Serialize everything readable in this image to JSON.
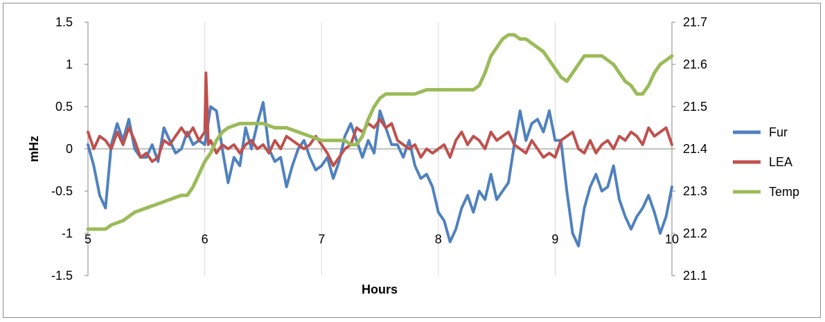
{
  "chart_data": {
    "type": "line",
    "title": "",
    "xlabel": "Hours",
    "ylabel": "mHz",
    "y2label": "",
    "xlim": [
      5,
      10
    ],
    "ylim": [
      -1.5,
      1.5
    ],
    "y2lim": [
      21.1,
      21.7
    ],
    "xticks": [
      "5",
      "6",
      "7",
      "8",
      "9",
      "10"
    ],
    "yticks": [
      "1.5",
      "1",
      "0.5",
      "0",
      "-0.5",
      "-1",
      "-1.5"
    ],
    "y2ticks": [
      "21.7",
      "21.6",
      "21.5",
      "21.4",
      "21.3",
      "21.2",
      "21.1"
    ],
    "grid": "vertical",
    "legend": "right",
    "series": [
      {
        "name": "Fur",
        "color": "#4f81bd",
        "axis": "left",
        "x": [
          5.0,
          5.05,
          5.1,
          5.15,
          5.2,
          5.25,
          5.3,
          5.35,
          5.4,
          5.45,
          5.5,
          5.55,
          5.6,
          5.65,
          5.7,
          5.75,
          5.8,
          5.85,
          5.9,
          5.95,
          6.0,
          6.05,
          6.1,
          6.15,
          6.2,
          6.25,
          6.3,
          6.35,
          6.4,
          6.45,
          6.5,
          6.55,
          6.6,
          6.65,
          6.7,
          6.75,
          6.8,
          6.85,
          6.9,
          6.95,
          7.0,
          7.05,
          7.1,
          7.15,
          7.2,
          7.25,
          7.3,
          7.35,
          7.4,
          7.45,
          7.5,
          7.55,
          7.6,
          7.65,
          7.7,
          7.75,
          7.8,
          7.85,
          7.9,
          7.95,
          8.0,
          8.05,
          8.1,
          8.15,
          8.2,
          8.25,
          8.3,
          8.35,
          8.4,
          8.45,
          8.5,
          8.55,
          8.6,
          8.65,
          8.7,
          8.75,
          8.8,
          8.85,
          8.9,
          8.95,
          9.0,
          9.05,
          9.1,
          9.15,
          9.2,
          9.25,
          9.3,
          9.35,
          9.4,
          9.45,
          9.5,
          9.55,
          9.6,
          9.65,
          9.7,
          9.75,
          9.8,
          9.85,
          9.9,
          9.95,
          10.0
        ],
        "y": [
          0.05,
          -0.2,
          -0.55,
          -0.7,
          0.05,
          0.3,
          0.1,
          0.35,
          0.0,
          -0.1,
          -0.1,
          0.05,
          -0.15,
          0.25,
          0.1,
          -0.05,
          0.0,
          0.2,
          0.05,
          0.1,
          0.05,
          0.5,
          0.45,
          0.0,
          -0.4,
          -0.1,
          -0.2,
          0.25,
          0.0,
          0.3,
          0.55,
          0.0,
          -0.15,
          -0.1,
          -0.45,
          -0.2,
          0.0,
          0.1,
          -0.1,
          -0.25,
          -0.2,
          -0.1,
          -0.35,
          -0.15,
          0.15,
          0.3,
          0.1,
          -0.1,
          0.1,
          -0.05,
          0.45,
          0.25,
          0.05,
          0.05,
          -0.1,
          0.1,
          -0.2,
          -0.35,
          -0.3,
          -0.45,
          -0.75,
          -0.85,
          -1.1,
          -0.95,
          -0.7,
          -0.55,
          -0.75,
          -0.5,
          -0.6,
          -0.3,
          -0.6,
          -0.5,
          -0.4,
          0.05,
          0.45,
          0.1,
          0.3,
          0.35,
          0.2,
          0.45,
          0.1,
          0.1,
          -0.5,
          -1.0,
          -1.15,
          -0.7,
          -0.45,
          -0.3,
          -0.5,
          -0.45,
          -0.2,
          -0.6,
          -0.8,
          -0.95,
          -0.8,
          -0.7,
          -0.55,
          -0.75,
          -1.0,
          -0.8,
          -0.45
        ]
      },
      {
        "name": "LEA",
        "color": "#c0504d",
        "axis": "left",
        "x": [
          5.0,
          5.05,
          5.1,
          5.15,
          5.2,
          5.25,
          5.3,
          5.35,
          5.4,
          5.45,
          5.5,
          5.55,
          5.6,
          5.65,
          5.7,
          5.75,
          5.8,
          5.85,
          5.9,
          5.95,
          6.0,
          6.01,
          6.02,
          6.03,
          6.05,
          6.1,
          6.15,
          6.2,
          6.25,
          6.3,
          6.35,
          6.4,
          6.45,
          6.5,
          6.55,
          6.6,
          6.65,
          6.7,
          6.75,
          6.8,
          6.85,
          6.9,
          6.95,
          7.0,
          7.05,
          7.1,
          7.15,
          7.2,
          7.25,
          7.3,
          7.35,
          7.4,
          7.45,
          7.5,
          7.55,
          7.6,
          7.65,
          7.7,
          7.75,
          7.8,
          7.85,
          7.9,
          7.95,
          8.0,
          8.05,
          8.1,
          8.15,
          8.2,
          8.25,
          8.3,
          8.35,
          8.4,
          8.45,
          8.5,
          8.55,
          8.6,
          8.65,
          8.7,
          8.75,
          8.8,
          8.85,
          8.9,
          8.95,
          9.0,
          9.05,
          9.1,
          9.15,
          9.2,
          9.25,
          9.3,
          9.35,
          9.4,
          9.45,
          9.5,
          9.55,
          9.6,
          9.65,
          9.7,
          9.75,
          9.8,
          9.85,
          9.9,
          9.95,
          10.0
        ],
        "y": [
          0.2,
          0.0,
          0.15,
          0.1,
          0.0,
          0.2,
          0.05,
          0.25,
          0.1,
          -0.1,
          -0.05,
          -0.15,
          -0.1,
          0.1,
          0.05,
          0.15,
          0.25,
          0.15,
          0.25,
          0.1,
          0.2,
          0.9,
          0.5,
          0.05,
          0.1,
          -0.05,
          0.05,
          0.0,
          0.05,
          -0.05,
          0.05,
          0.1,
          0.0,
          0.05,
          -0.05,
          0.1,
          0.0,
          0.15,
          0.1,
          0.05,
          0.0,
          0.05,
          0.15,
          0.05,
          -0.05,
          -0.2,
          -0.1,
          0.0,
          0.05,
          0.25,
          0.2,
          0.3,
          0.25,
          0.35,
          0.25,
          0.3,
          0.1,
          0.05,
          0.0,
          0.05,
          -0.1,
          0.0,
          -0.05,
          0.0,
          0.05,
          -0.1,
          0.1,
          0.2,
          0.05,
          0.15,
          0.1,
          0.0,
          0.2,
          0.1,
          0.15,
          0.2,
          0.05,
          0.0,
          -0.05,
          0.1,
          0.0,
          -0.1,
          -0.05,
          -0.1,
          0.1,
          0.15,
          0.2,
          0.0,
          -0.05,
          0.1,
          -0.05,
          0.05,
          0.1,
          0.0,
          0.15,
          0.1,
          0.2,
          0.15,
          0.05,
          0.25,
          0.15,
          0.2,
          0.25,
          0.05
        ]
      },
      {
        "name": "Temp",
        "color": "#9bbb59",
        "axis": "right",
        "x": [
          5.0,
          5.1,
          5.15,
          5.2,
          5.3,
          5.4,
          5.5,
          5.6,
          5.7,
          5.8,
          5.85,
          5.9,
          5.95,
          6.0,
          6.05,
          6.1,
          6.15,
          6.2,
          6.3,
          6.4,
          6.5,
          6.6,
          6.7,
          6.8,
          6.9,
          7.0,
          7.1,
          7.2,
          7.25,
          7.3,
          7.35,
          7.4,
          7.45,
          7.5,
          7.55,
          7.6,
          7.7,
          7.8,
          7.9,
          8.0,
          8.1,
          8.2,
          8.3,
          8.35,
          8.4,
          8.45,
          8.5,
          8.55,
          8.6,
          8.65,
          8.7,
          8.75,
          8.8,
          8.85,
          8.9,
          8.95,
          9.0,
          9.05,
          9.1,
          9.15,
          9.2,
          9.25,
          9.3,
          9.35,
          9.4,
          9.45,
          9.5,
          9.55,
          9.6,
          9.65,
          9.7,
          9.75,
          9.8,
          9.85,
          9.9,
          9.95,
          10.0
        ],
        "y": [
          21.21,
          21.21,
          21.21,
          21.22,
          21.23,
          21.25,
          21.26,
          21.27,
          21.28,
          21.29,
          21.29,
          21.31,
          21.34,
          21.37,
          21.39,
          21.42,
          21.44,
          21.45,
          21.46,
          21.46,
          21.46,
          21.45,
          21.45,
          21.44,
          21.43,
          21.42,
          21.42,
          21.42,
          21.41,
          21.41,
          21.43,
          21.47,
          21.5,
          21.52,
          21.53,
          21.53,
          21.53,
          21.53,
          21.54,
          21.54,
          21.54,
          21.54,
          21.54,
          21.55,
          21.58,
          21.62,
          21.64,
          21.66,
          21.67,
          21.67,
          21.66,
          21.66,
          21.65,
          21.64,
          21.63,
          21.61,
          21.59,
          21.57,
          21.56,
          21.58,
          21.6,
          21.62,
          21.62,
          21.62,
          21.62,
          21.61,
          21.6,
          21.58,
          21.56,
          21.55,
          21.53,
          21.53,
          21.55,
          21.58,
          21.6,
          21.61,
          21.62
        ]
      }
    ]
  }
}
